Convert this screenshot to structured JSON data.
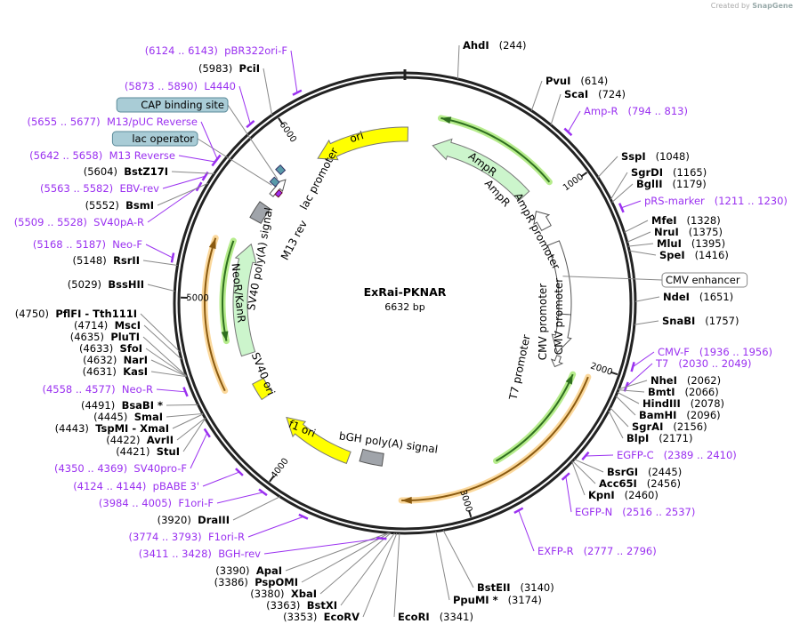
{
  "credit": {
    "prefix": "Created by",
    "brand": "SnapGene"
  },
  "plasmid": {
    "name": "ExRai-PKNAR",
    "length": "6632 bp",
    "total_bp": 6632
  },
  "ticks": [
    "1000",
    "2000",
    "3000",
    "4000",
    "5000",
    "6000"
  ],
  "features": {
    "ori": "ori",
    "ampr": "AmpR",
    "ampr2": "AmpR",
    "ampr_promoter": "AmpR promoter",
    "cmv_promoter": "CMV promoter",
    "cmv_promoter2": "CMV promoter",
    "t7_promoter": "T7 promoter",
    "bgh": "bGH poly(A) signal",
    "f1ori": "f1 ori",
    "sv40ori": "SV40 ori",
    "neor": "NeoR/KanR",
    "sv40pa": "SV40 poly(A) signal",
    "lac_promoter": "lac promoter",
    "m13rev": "M13 rev"
  },
  "colors": {
    "primer": "#9a30f0",
    "ori": "#ffff00",
    "ampr": "#ccf5cc",
    "orf_green": "#2f6f1f",
    "orf_orange": "#8a5a10",
    "gray_feature": "#a0a4aa",
    "box_blue": "#a9ccd6"
  },
  "labels": [
    {
      "type": "enzyme",
      "name": "AhdI",
      "pos": "(244)",
      "bp": 244
    },
    {
      "type": "enzyme",
      "name": "PvuI",
      "pos": "(614)",
      "bp": 614
    },
    {
      "type": "enzyme",
      "name": "ScaI",
      "pos": "(724)",
      "bp": 724
    },
    {
      "type": "primer",
      "name": "Amp-R",
      "pos": "(794 .. 813)",
      "bp": 803
    },
    {
      "type": "enzyme",
      "name": "SspI",
      "pos": "(1048)",
      "bp": 1048
    },
    {
      "type": "enzyme",
      "name": "SgrDI",
      "pos": "(1165)",
      "bp": 1165
    },
    {
      "type": "enzyme",
      "name": "BglII",
      "pos": "(1179)",
      "bp": 1179
    },
    {
      "type": "primer",
      "name": "pRS-marker",
      "pos": "(1211 .. 1230)",
      "bp": 1220
    },
    {
      "type": "enzyme",
      "name": "MfeI",
      "pos": "(1328)",
      "bp": 1328
    },
    {
      "type": "enzyme",
      "name": "NruI",
      "pos": "(1375)",
      "bp": 1375
    },
    {
      "type": "enzyme",
      "name": "MluI",
      "pos": "(1395)",
      "bp": 1395
    },
    {
      "type": "enzyme",
      "name": "SpeI",
      "pos": "(1416)",
      "bp": 1416
    },
    {
      "type": "box",
      "name": "CMV enhancer",
      "pos": "",
      "bp": 1480
    },
    {
      "type": "enzyme",
      "name": "NdeI",
      "pos": "(1651)",
      "bp": 1651
    },
    {
      "type": "enzyme",
      "name": "SnaBI",
      "pos": "(1757)",
      "bp": 1757
    },
    {
      "type": "primer",
      "name": "CMV-F",
      "pos": "(1936 .. 1956)",
      "bp": 1946
    },
    {
      "type": "primer",
      "name": "T7",
      "pos": "(2030 .. 2049)",
      "bp": 2040
    },
    {
      "type": "enzyme",
      "name": "NheI",
      "pos": "(2062)",
      "bp": 2062
    },
    {
      "type": "enzyme",
      "name": "BmtI",
      "pos": "(2066)",
      "bp": 2066
    },
    {
      "type": "enzyme",
      "name": "HindIII",
      "pos": "(2078)",
      "bp": 2078
    },
    {
      "type": "enzyme",
      "name": "BamHI",
      "pos": "(2096)",
      "bp": 2096
    },
    {
      "type": "enzyme",
      "name": "SgrAI",
      "pos": "(2156)",
      "bp": 2156
    },
    {
      "type": "enzyme",
      "name": "BlpI",
      "pos": "(2171)",
      "bp": 2171
    },
    {
      "type": "primer",
      "name": "EGFP-C",
      "pos": "(2389 .. 2410)",
      "bp": 2400
    },
    {
      "type": "enzyme",
      "name": "BsrGI",
      "pos": "(2445)",
      "bp": 2445
    },
    {
      "type": "enzyme",
      "name": "Acc65I",
      "pos": "(2456)",
      "bp": 2456
    },
    {
      "type": "enzyme",
      "name": "KpnI",
      "pos": "(2460)",
      "bp": 2460
    },
    {
      "type": "primer",
      "name": "EGFP-N",
      "pos": "(2516 .. 2537)",
      "bp": 2527
    },
    {
      "type": "primer",
      "name": "EXFP-R",
      "pos": "(2777 .. 2796)",
      "bp": 2787
    },
    {
      "type": "enzyme",
      "name": "BstEII",
      "pos": "(3140)",
      "bp": 3140
    },
    {
      "type": "enzyme",
      "name": "PpuMI *",
      "pos": "(3174)",
      "bp": 3174
    },
    {
      "type": "enzyme",
      "name": "EcoRI",
      "pos": "(3341)",
      "bp": 3341
    },
    {
      "type": "enzyme",
      "name": "EcoRV",
      "pos": "(3353)",
      "bp": 3353
    },
    {
      "type": "enzyme",
      "name": "BstXI",
      "pos": "(3363)",
      "bp": 3363
    },
    {
      "type": "enzyme",
      "name": "XbaI",
      "pos": "(3380)",
      "bp": 3380
    },
    {
      "type": "enzyme",
      "name": "PspOMI",
      "pos": "(3386)",
      "bp": 3386
    },
    {
      "type": "enzyme",
      "name": "ApaI",
      "pos": "(3390)",
      "bp": 3390
    },
    {
      "type": "primer",
      "name": "BGH-rev",
      "pos": "(3411 .. 3428)",
      "bp": 3420
    },
    {
      "type": "primer",
      "name": "F1ori-R",
      "pos": "(3774 .. 3793)",
      "bp": 3784
    },
    {
      "type": "enzyme",
      "name": "DraIII",
      "pos": "(3920)",
      "bp": 3920
    },
    {
      "type": "primer",
      "name": "F1ori-F",
      "pos": "(3984 .. 4005)",
      "bp": 3995
    },
    {
      "type": "primer",
      "name": "pBABE 3'",
      "pos": "(4124 .. 4144)",
      "bp": 4134
    },
    {
      "type": "primer",
      "name": "SV40pro-F",
      "pos": "(4350 .. 4369)",
      "bp": 4360
    },
    {
      "type": "enzyme",
      "name": "StuI",
      "pos": "(4421)",
      "bp": 4421
    },
    {
      "type": "enzyme",
      "name": "AvrII",
      "pos": "(4422)",
      "bp": 4422
    },
    {
      "type": "enzyme",
      "name": "TspMI   - XmaI",
      "pos": "(4443)",
      "bp": 4443
    },
    {
      "type": "enzyme",
      "name": "SmaI",
      "pos": "(4445)",
      "bp": 4445
    },
    {
      "type": "enzyme",
      "name": "BsaBI *",
      "pos": "(4491)",
      "bp": 4491
    },
    {
      "type": "primer",
      "name": "Neo-R",
      "pos": "(4558 .. 4577)",
      "bp": 4568
    },
    {
      "type": "enzyme",
      "name": "KasI",
      "pos": "(4631)",
      "bp": 4631
    },
    {
      "type": "enzyme",
      "name": "NarI",
      "pos": "(4632)",
      "bp": 4632
    },
    {
      "type": "enzyme",
      "name": "SfoI",
      "pos": "(4633)",
      "bp": 4633
    },
    {
      "type": "enzyme",
      "name": "PluTI",
      "pos": "(4635)",
      "bp": 4635
    },
    {
      "type": "enzyme",
      "name": "MscI",
      "pos": "(4714)",
      "bp": 4714
    },
    {
      "type": "enzyme",
      "name": "PflFI   - Tth111I",
      "pos": "(4750)",
      "bp": 4750
    },
    {
      "type": "enzyme",
      "name": "BssHII",
      "pos": "(5029)",
      "bp": 5029
    },
    {
      "type": "enzyme",
      "name": "RsrII",
      "pos": "(5148)",
      "bp": 5148
    },
    {
      "type": "primer",
      "name": "Neo-F",
      "pos": "(5168 .. 5187)",
      "bp": 5178
    },
    {
      "type": "primer",
      "name": "SV40pA-R",
      "pos": "(5509 .. 5528)",
      "bp": 5518
    },
    {
      "type": "enzyme",
      "name": "BsmI",
      "pos": "(5552)",
      "bp": 5552
    },
    {
      "type": "primer",
      "name": "EBV-rev",
      "pos": "(5563 .. 5582)",
      "bp": 5572
    },
    {
      "type": "enzyme",
      "name": "BstZ17I",
      "pos": "(5604)",
      "bp": 5604
    },
    {
      "type": "primer",
      "name": "M13 Reverse",
      "pos": "(5642 .. 5658)",
      "bp": 5650
    },
    {
      "type": "bluebox",
      "name": "lac operator",
      "pos": "",
      "bp": 5740
    },
    {
      "type": "primer",
      "name": "M13/pUC Reverse",
      "pos": "(5655 .. 5677)",
      "bp": 5666
    },
    {
      "type": "bluebox",
      "name": "CAP binding site",
      "pos": "",
      "bp": 5790
    },
    {
      "type": "primer",
      "name": "L4440",
      "pos": "(5873 .. 5890)",
      "bp": 5881
    },
    {
      "type": "enzyme",
      "name": "PciI",
      "pos": "(5983)",
      "bp": 5983
    },
    {
      "type": "primer",
      "name": "pBR322ori-F",
      "pos": "(6124 .. 6143)",
      "bp": 6133
    }
  ]
}
